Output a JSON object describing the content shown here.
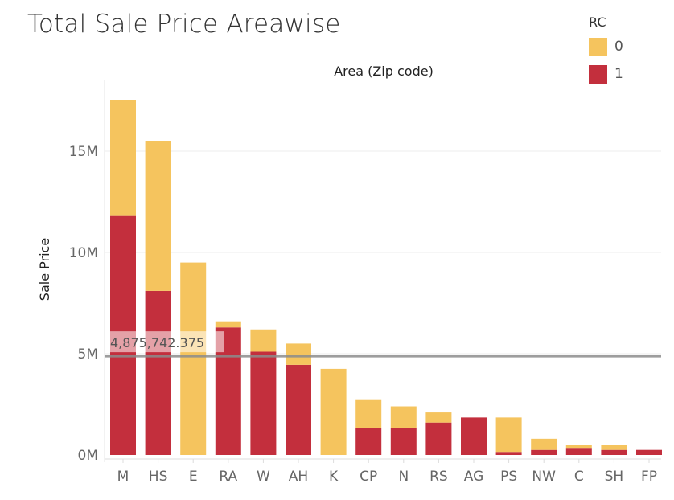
{
  "chart_data": {
    "type": "bar",
    "stacked": true,
    "title": "Total Sale Price Areawise",
    "column_header": "Area (Zip code)",
    "xlabel": "",
    "ylabel": "Sale Price",
    "ylim": [
      0,
      18000000
    ],
    "yticks": [
      {
        "value": 0,
        "label": "0M"
      },
      {
        "value": 5000000,
        "label": "5M"
      },
      {
        "value": 10000000,
        "label": "10M"
      },
      {
        "value": 15000000,
        "label": "15M"
      }
    ],
    "categories": [
      "M",
      "HS",
      "E",
      "RA",
      "W",
      "AH",
      "K",
      "CP",
      "N",
      "RS",
      "AG",
      "PS",
      "NW",
      "C",
      "SH",
      "FP"
    ],
    "series": [
      {
        "name": "1",
        "color": "#c32f3d",
        "values": [
          11800000,
          8100000,
          0,
          6300000,
          5100000,
          4450000,
          0,
          1350000,
          1350000,
          1600000,
          1850000,
          150000,
          250000,
          350000,
          250000,
          250000
        ]
      },
      {
        "name": "0",
        "color": "#f5c45e",
        "values": [
          5700000,
          7400000,
          9500000,
          300000,
          1100000,
          1050000,
          4250000,
          1400000,
          1050000,
          500000,
          0,
          1700000,
          550000,
          150000,
          250000,
          0
        ]
      }
    ],
    "legend": {
      "title": "RC",
      "position": "top-right",
      "entries": [
        {
          "label": "0",
          "color": "#f5c45e"
        },
        {
          "label": "1",
          "color": "#c32f3d"
        }
      ]
    },
    "reference_line": {
      "value": 4875742.375,
      "label": "4,875,742.375",
      "color": "#8c8c8c"
    },
    "grid": true
  }
}
